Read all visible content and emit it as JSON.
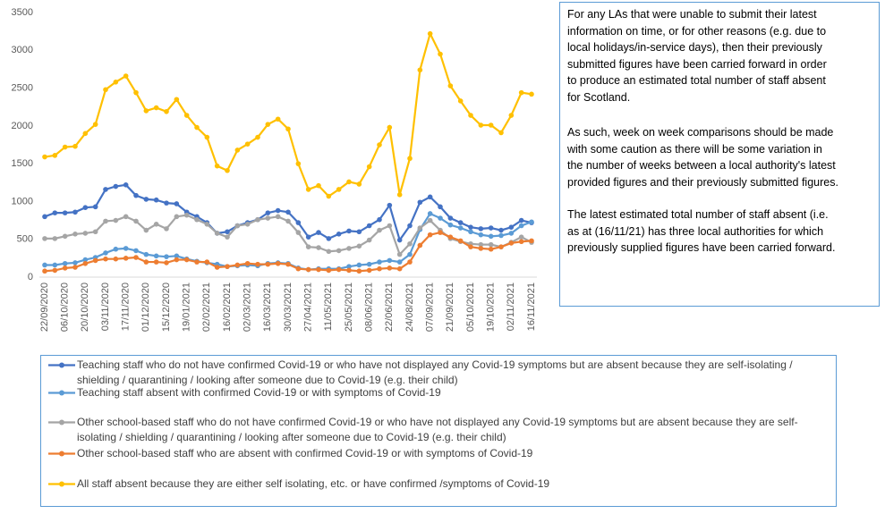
{
  "chart_data": {
    "type": "line",
    "categories": [
      "22/09/2020",
      null,
      "06/10/2020",
      null,
      "20/10/2020",
      null,
      "03/11/2020",
      null,
      "17/11/2020",
      null,
      "01/12/2020",
      null,
      "15/12/2020",
      null,
      "19/01/2021",
      null,
      "02/02/2021",
      null,
      "16/02/2021",
      null,
      "02/03/2021",
      null,
      "16/03/2021",
      null,
      "30/03/2021",
      null,
      "27/04/2021",
      null,
      "11/05/2021",
      null,
      "25/05/2021",
      null,
      "08/06/2021",
      null,
      "22/06/2021",
      null,
      "24/08/2021",
      null,
      "07/09/2021",
      null,
      "21/09/2021",
      null,
      "05/10/2021",
      null,
      "19/10/2021",
      null,
      "02/11/2021",
      null,
      "16/11/2021"
    ],
    "series": [
      {
        "name": "Teaching staff who do not have confirmed Covid-19 or who have not displayed any Covid-19 symptoms but are absent because they are self-isolating / shielding / quarantining / looking after someone due to Covid-19 (e.g. their child)",
        "color": "#4472c4",
        "values": [
          800,
          850,
          850,
          860,
          920,
          930,
          1160,
          1200,
          1220,
          1080,
          1030,
          1020,
          980,
          970,
          860,
          800,
          720,
          580,
          600,
          680,
          720,
          760,
          850,
          880,
          860,
          720,
          530,
          590,
          510,
          570,
          610,
          600,
          680,
          760,
          950,
          490,
          680,
          990,
          1060,
          930,
          780,
          720,
          660,
          640,
          650,
          620,
          660,
          750,
          720
        ]
      },
      {
        "name": "Teaching staff absent with confirmed Covid-19 or with symptoms of Covid-19",
        "color": "#5b9bd5",
        "values": [
          160,
          160,
          180,
          190,
          230,
          260,
          320,
          370,
          380,
          350,
          300,
          280,
          270,
          280,
          240,
          210,
          190,
          170,
          140,
          150,
          160,
          150,
          180,
          190,
          180,
          120,
          100,
          110,
          110,
          110,
          140,
          160,
          170,
          200,
          220,
          200,
          300,
          630,
          840,
          780,
          690,
          650,
          600,
          560,
          540,
          550,
          580,
          680,
          730
        ]
      },
      {
        "name": "Other school-based staff who do not have confirmed Covid-19 or who have not displayed any Covid-19 symptoms but are absent because they are self-isolating / shielding / quarantining / looking after someone due to Covid-19 (e.g. their child)",
        "color": "#a5a5a5",
        "values": [
          510,
          510,
          540,
          570,
          580,
          600,
          740,
          750,
          800,
          740,
          620,
          700,
          640,
          800,
          820,
          760,
          700,
          580,
          530,
          680,
          700,
          760,
          780,
          800,
          740,
          590,
          400,
          390,
          340,
          350,
          380,
          410,
          490,
          620,
          680,
          300,
          440,
          650,
          750,
          620,
          510,
          470,
          440,
          430,
          430,
          400,
          460,
          530,
          460
        ]
      },
      {
        "name": "Other school-based staff who are absent with confirmed Covid-19 or with symptoms of Covid-19",
        "color": "#ed7d31",
        "values": [
          80,
          90,
          120,
          130,
          180,
          220,
          240,
          240,
          250,
          260,
          200,
          200,
          190,
          230,
          230,
          200,
          200,
          130,
          140,
          160,
          180,
          170,
          170,
          180,
          170,
          110,
          100,
          100,
          90,
          100,
          90,
          80,
          90,
          110,
          120,
          110,
          200,
          420,
          560,
          590,
          530,
          480,
          400,
          380,
          370,
          400,
          450,
          470,
          480
        ]
      },
      {
        "name": "All staff absent because they are either self isolating, etc. or have confirmed /symptoms of Covid-19",
        "color": "#ffc000",
        "values": [
          1590,
          1610,
          1720,
          1730,
          1900,
          2020,
          2480,
          2580,
          2660,
          2440,
          2200,
          2240,
          2190,
          2350,
          2140,
          1980,
          1850,
          1470,
          1410,
          1680,
          1760,
          1850,
          2020,
          2090,
          1960,
          1500,
          1160,
          1210,
          1070,
          1160,
          1260,
          1230,
          1460,
          1750,
          1980,
          1090,
          1570,
          2740,
          3220,
          2950,
          2530,
          2330,
          2140,
          2010,
          2010,
          1910,
          2140,
          2440,
          2420
        ]
      }
    ],
    "ylim": [
      0,
      3500
    ],
    "yticks": [
      0,
      500,
      1000,
      1500,
      2000,
      2500,
      3000,
      3500
    ],
    "grid": false
  },
  "note": [
    [
      "For any LAs that were unable to submit their latest",
      "information on time, or for other reasons (e.g. due to",
      "local holidays/in-service days), then their previously",
      "submitted figures have been carried forward in order",
      "to produce an estimated total number of staff absent",
      "for Scotland."
    ],
    [
      "As such, week on week comparisons should be made",
      "with some caution as there will be some variation in",
      "the number of weeks between a local authority's latest",
      "provided figures and their previously submitted figures."
    ],
    [
      "The latest estimated total number of staff absent (i.e.",
      "as at (16/11/21) has three local authorities for which",
      "previously supplied figures have been carried forward."
    ]
  ]
}
